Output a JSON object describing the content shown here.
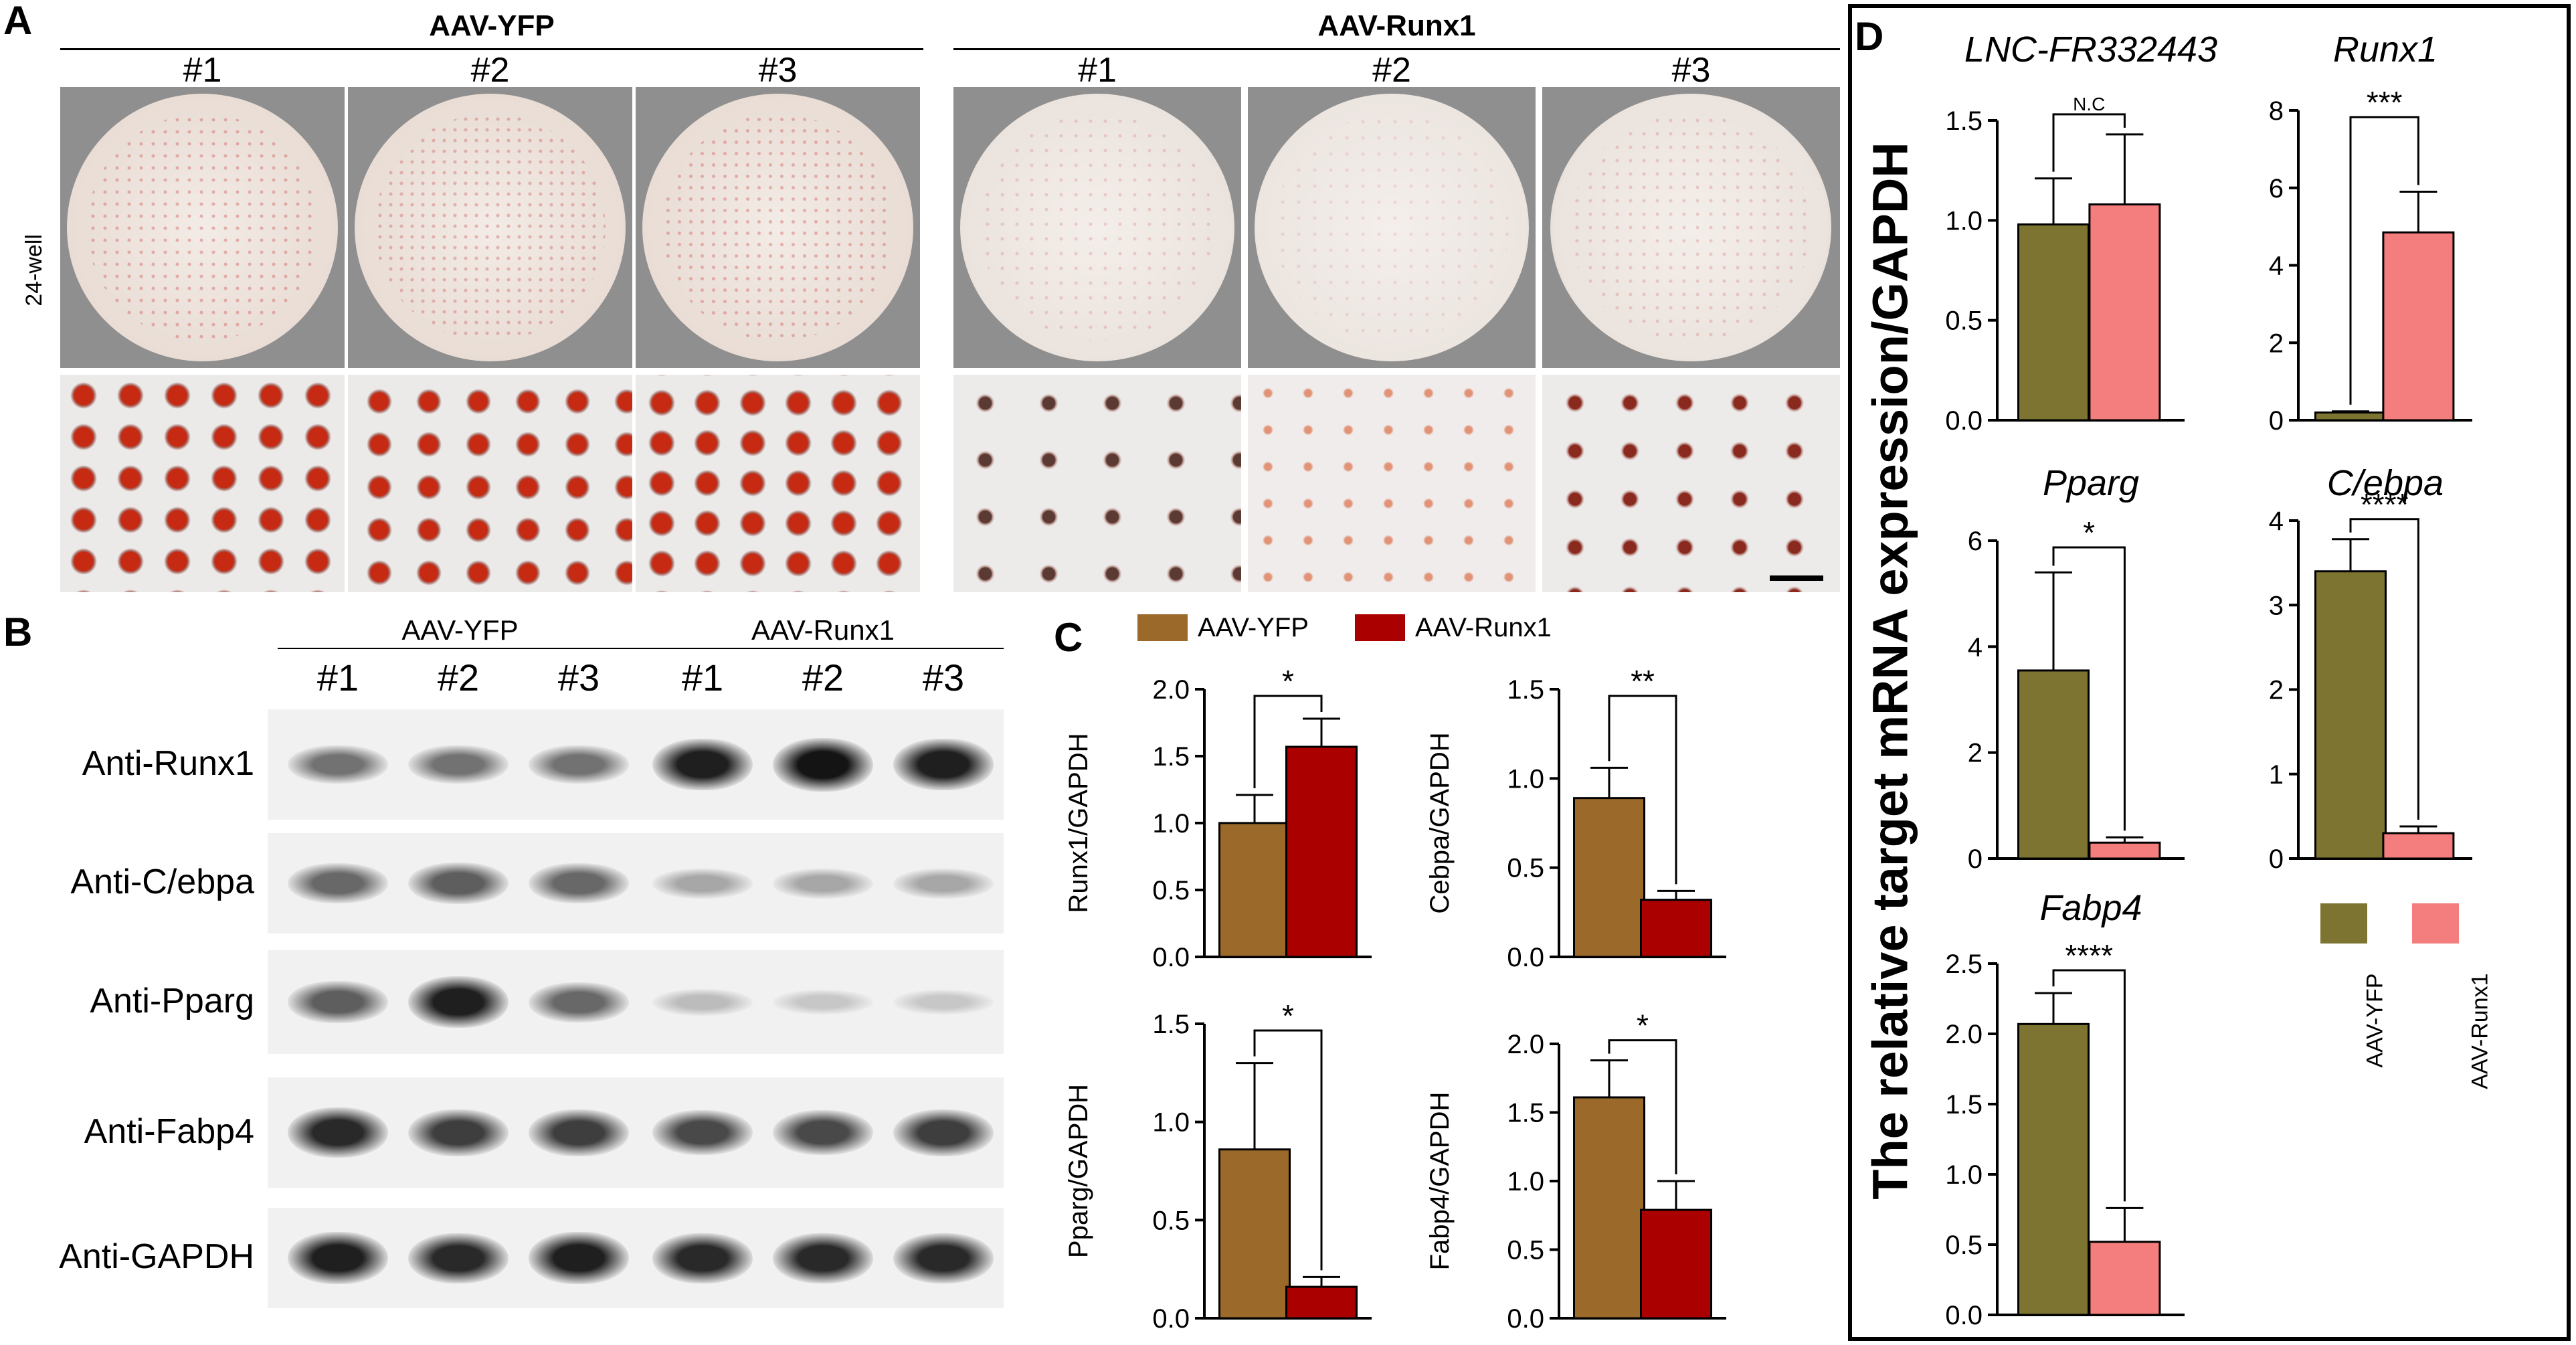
{
  "panels": {
    "A": "A",
    "B": "B",
    "C": "C",
    "D": "D"
  },
  "panelA": {
    "group_left": "AAV-YFP",
    "group_right": "AAV-Runx1",
    "replicates": [
      "#1",
      "#2",
      "#3",
      "#1",
      "#2",
      "#3"
    ],
    "row_label": "24-well"
  },
  "panelB": {
    "group_left": "AAV-YFP",
    "group_right": "AAV-Runx1",
    "replicates": [
      "#1",
      "#2",
      "#3",
      "#1",
      "#2",
      "#3"
    ],
    "blots": [
      {
        "label": "Anti-Runx1"
      },
      {
        "label": "Anti-C/ebpa"
      },
      {
        "label": "Anti-Pparg"
      },
      {
        "label": "Anti-Fabp4"
      },
      {
        "label": "Anti-GAPDH"
      }
    ],
    "band_intensity": [
      [
        0.55,
        0.55,
        0.55,
        0.95,
        1.0,
        0.95
      ],
      [
        0.6,
        0.65,
        0.6,
        0.3,
        0.3,
        0.3
      ],
      [
        0.65,
        0.95,
        0.6,
        0.2,
        0.15,
        0.15
      ],
      [
        0.9,
        0.8,
        0.8,
        0.75,
        0.75,
        0.8
      ],
      [
        0.95,
        0.9,
        0.95,
        0.9,
        0.9,
        0.9
      ]
    ]
  },
  "colors": {
    "c_yfp": "#9b6a2a",
    "c_runx": "#aa0000",
    "d_yfp": "#7e7431",
    "d_runx": "#f47d7d"
  },
  "chart_data": [
    {
      "type": "bar",
      "panel": "C",
      "categories": [
        "AAV-YFP",
        "AAV-Runx1"
      ],
      "values": [
        1.0,
        1.57
      ],
      "errors": [
        0.21,
        0.21
      ],
      "ylabel": "Runx1/GAPDH",
      "ylim": [
        0,
        2.0
      ],
      "yticks": [
        "0.0",
        "0.5",
        "1.0",
        "1.5",
        "2.0"
      ],
      "significance": "*",
      "legend": [
        "AAV-YFP",
        "AAV-Runx1"
      ]
    },
    {
      "type": "bar",
      "panel": "C",
      "categories": [
        "AAV-YFP",
        "AAV-Runx1"
      ],
      "values": [
        0.89,
        0.32
      ],
      "errors": [
        0.17,
        0.05
      ],
      "ylabel": "Cebpa/GAPDH",
      "ylim": [
        0,
        1.5
      ],
      "yticks": [
        "0.0",
        "0.5",
        "1.0",
        "1.5"
      ],
      "significance": "**"
    },
    {
      "type": "bar",
      "panel": "C",
      "categories": [
        "AAV-YFP",
        "AAV-Runx1"
      ],
      "values": [
        0.86,
        0.16
      ],
      "errors": [
        0.44,
        0.05
      ],
      "ylabel": "Pparg/GAPDH",
      "ylim": [
        0,
        1.5
      ],
      "yticks": [
        "0.0",
        "0.5",
        "1.0",
        "1.5"
      ],
      "significance": "*"
    },
    {
      "type": "bar",
      "panel": "C",
      "categories": [
        "AAV-YFP",
        "AAV-Runx1"
      ],
      "values": [
        1.61,
        0.79
      ],
      "errors": [
        0.27,
        0.21
      ],
      "ylabel": "Fabp4/GAPDH",
      "ylim": [
        0,
        2.0
      ],
      "yticks": [
        "0.0",
        "0.5",
        "1.0",
        "1.5",
        "2.0"
      ],
      "significance": "*"
    },
    {
      "type": "bar",
      "panel": "D",
      "title": "LNC-FR332443",
      "categories": [
        "AAV-YFP",
        "AAV-Runx1"
      ],
      "values": [
        0.98,
        1.08
      ],
      "errors": [
        0.23,
        0.35
      ],
      "ylim": [
        0,
        1.5
      ],
      "yticks": [
        "0.0",
        "0.5",
        "1.0",
        "1.5"
      ],
      "significance": "N.C"
    },
    {
      "type": "bar",
      "panel": "D",
      "title": "Runx1",
      "categories": [
        "AAV-YFP",
        "AAV-Runx1"
      ],
      "values": [
        0.2,
        4.85
      ],
      "errors": [
        0.03,
        1.05
      ],
      "ylim": [
        0,
        8
      ],
      "yticks": [
        "0",
        "2",
        "4",
        "6",
        "8"
      ],
      "significance": "***"
    },
    {
      "type": "bar",
      "panel": "D",
      "title": "Pparg",
      "categories": [
        "AAV-YFP",
        "AAV-Runx1"
      ],
      "values": [
        3.55,
        0.3
      ],
      "errors": [
        1.85,
        0.1
      ],
      "ylim": [
        0,
        6
      ],
      "yticks": [
        "0",
        "2",
        "4",
        "6"
      ],
      "significance": "*"
    },
    {
      "type": "bar",
      "panel": "D",
      "title": "C/ebpa",
      "categories": [
        "AAV-YFP",
        "AAV-Runx1"
      ],
      "values": [
        3.4,
        0.3
      ],
      "errors": [
        0.38,
        0.08
      ],
      "ylim": [
        0,
        4
      ],
      "yticks": [
        "0",
        "1",
        "2",
        "3",
        "4"
      ],
      "significance": "****"
    },
    {
      "type": "bar",
      "panel": "D",
      "title": "Fabp4",
      "categories": [
        "AAV-YFP",
        "AAV-Runx1"
      ],
      "values": [
        2.07,
        0.52
      ],
      "errors": [
        0.22,
        0.24
      ],
      "ylim": [
        0,
        2.5
      ],
      "yticks": [
        "0.0",
        "0.5",
        "1.0",
        "1.5",
        "2.0",
        "2.5"
      ],
      "significance": "****",
      "legend": [
        "AAV-YFP",
        "AAV-Runx1"
      ]
    }
  ],
  "panelD": {
    "ylabel": "The relative target mRNA expression/GAPDH"
  }
}
